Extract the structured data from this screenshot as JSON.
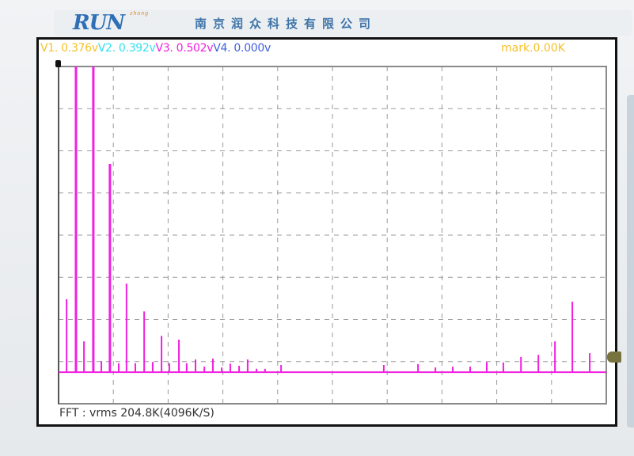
{
  "header": {
    "logo_text": "RUN",
    "logo_subtext": "zhong",
    "company_name": "南京润众科技有限公司"
  },
  "readouts": {
    "v1": {
      "label": "V1. 0.376v",
      "color": "#f6c12a"
    },
    "v2": {
      "label": "V2. 0.392v",
      "color": "#33e0f0"
    },
    "v3": {
      "label": "V3. 0.502v",
      "color": "#f020e0"
    },
    "v4": {
      "label": "V4. 0.000v",
      "color": "#4060e0"
    },
    "mark": "mark.0.00K"
  },
  "footer": {
    "status": "FFT : vrms 204.8K(4096K/S)"
  },
  "chart_data": {
    "type": "bar",
    "title": "",
    "xlabel": "",
    "ylabel": "",
    "x_unit": "kHz",
    "xlim": [
      0,
      204.8
    ],
    "ylim": [
      -0.75,
      7.25
    ],
    "grid": true,
    "grid_divisions": {
      "x": 10,
      "y": 8
    },
    "series_color": "#f020e0",
    "peaks": [
      {
        "f": 3.0,
        "a": 1.73
      },
      {
        "f": 6.5,
        "a": 8
      },
      {
        "f": 9.5,
        "a": 0.73
      },
      {
        "f": 13.0,
        "a": 8
      },
      {
        "f": 16.0,
        "a": 0.26
      },
      {
        "f": 19.2,
        "a": 4.94
      },
      {
        "f": 22.5,
        "a": 0.21
      },
      {
        "f": 25.4,
        "a": 2.1
      },
      {
        "f": 28.7,
        "a": 0.21
      },
      {
        "f": 32.0,
        "a": 1.44
      },
      {
        "f": 35.2,
        "a": 0.24
      },
      {
        "f": 38.5,
        "a": 0.86
      },
      {
        "f": 41.4,
        "a": 0.21
      },
      {
        "f": 45.0,
        "a": 0.77
      },
      {
        "f": 47.9,
        "a": 0.21
      },
      {
        "f": 51.2,
        "a": 0.3
      },
      {
        "f": 54.5,
        "a": 0.13
      },
      {
        "f": 57.7,
        "a": 0.32
      },
      {
        "f": 61.0,
        "a": 0.11
      },
      {
        "f": 64.2,
        "a": 0.2
      },
      {
        "f": 67.5,
        "a": 0.15
      },
      {
        "f": 70.7,
        "a": 0.3
      },
      {
        "f": 74.0,
        "a": 0.08
      },
      {
        "f": 77.2,
        "a": 0.08
      },
      {
        "f": 83.2,
        "a": 0.17
      },
      {
        "f": 121.6,
        "a": 0.17
      },
      {
        "f": 134.4,
        "a": 0.19
      },
      {
        "f": 140.9,
        "a": 0.11
      },
      {
        "f": 147.4,
        "a": 0.13
      },
      {
        "f": 153.9,
        "a": 0.13
      },
      {
        "f": 160.1,
        "a": 0.24
      },
      {
        "f": 166.3,
        "a": 0.23
      },
      {
        "f": 172.9,
        "a": 0.36
      },
      {
        "f": 179.4,
        "a": 0.41
      },
      {
        "f": 185.6,
        "a": 0.73
      },
      {
        "f": 192.1,
        "a": 1.67
      },
      {
        "f": 198.6,
        "a": 0.45
      }
    ]
  }
}
